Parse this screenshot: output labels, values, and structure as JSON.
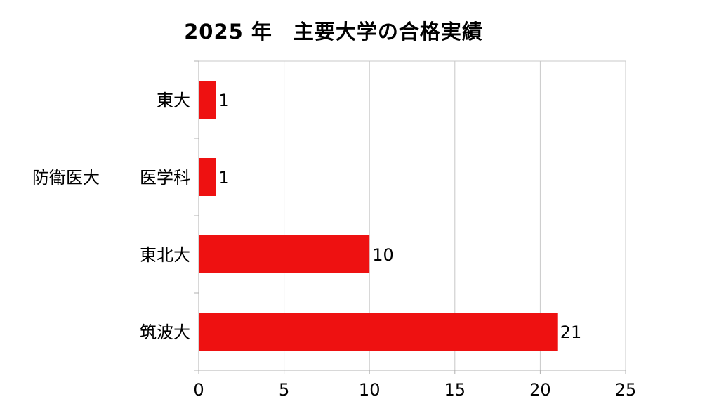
{
  "chart_data": {
    "type": "bar",
    "orientation": "horizontal",
    "title": "2025 年　主要大学の合格実績",
    "categories": [
      "東大",
      "医学科",
      "東北大",
      "筑波大"
    ],
    "category_group": {
      "label": "防衛医大",
      "category": "医学科"
    },
    "values": [
      1,
      1,
      10,
      21
    ],
    "data_labels": [
      "1",
      "1",
      "10",
      "21"
    ],
    "xlim": [
      0,
      25
    ],
    "xticks": [
      0,
      5,
      10,
      15,
      20,
      25
    ],
    "xlabel": "",
    "ylabel": "",
    "bar_color": "#ee1111",
    "grid": true,
    "legend": false
  }
}
